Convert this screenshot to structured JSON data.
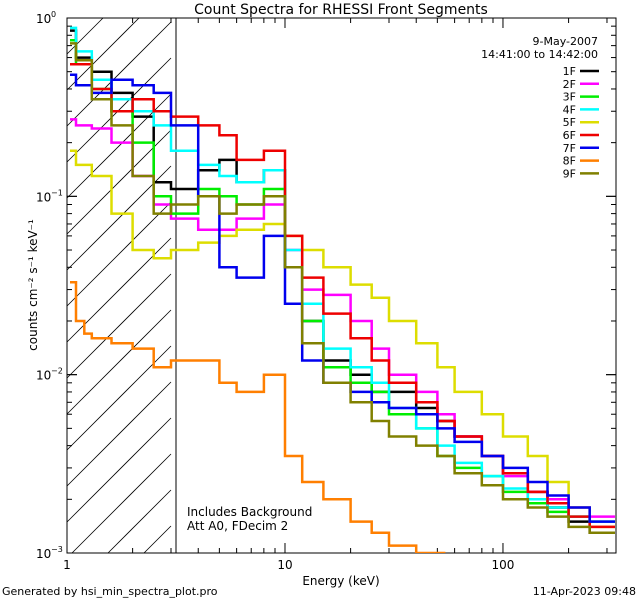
{
  "chart_data": {
    "type": "line",
    "title": "Count Spectra for RHESSI Front Segments",
    "xlabel": "Energy (keV)",
    "ylabel": "counts cm⁻² s⁻¹ keV⁻¹",
    "xscale": "log",
    "yscale": "log",
    "xlim": [
      1.0,
      330.0
    ],
    "ylim": [
      0.001,
      1.0
    ],
    "x_ticks": [
      {
        "value": 1,
        "label": "1"
      },
      {
        "value": 10,
        "label": "10"
      },
      {
        "value": 100,
        "label": "100"
      }
    ],
    "y_ticks": [
      {
        "value": 0.001,
        "base": "10",
        "exp": "−3"
      },
      {
        "value": 0.01,
        "base": "10",
        "exp": "−2"
      },
      {
        "value": 0.1,
        "base": "10",
        "exp": "−1"
      },
      {
        "value": 1.0,
        "base": "10",
        "exp": "0"
      }
    ],
    "legend_header": [
      "9-May-2007",
      "14:41:00 to 14:42:00"
    ],
    "legend_position": "top-right",
    "attenuated_region_max_keV": 3.0,
    "annotations": [
      "Includes Background",
      "Att A0, FDecim 2"
    ],
    "series": [
      {
        "name": "1F",
        "color": "#000000",
        "points": [
          [
            1.1,
            0.85
          ],
          [
            1.3,
            0.6
          ],
          [
            1.6,
            0.5
          ],
          [
            2.0,
            0.38
          ],
          [
            2.5,
            0.28
          ],
          [
            3.0,
            0.12
          ],
          [
            4.0,
            0.11
          ],
          [
            5.0,
            0.14
          ],
          [
            6.0,
            0.16
          ],
          [
            8.0,
            0.12
          ],
          [
            10.0,
            0.14
          ],
          [
            12.0,
            0.04
          ],
          [
            15.0,
            0.02
          ],
          [
            20.0,
            0.012
          ],
          [
            25.0,
            0.01
          ],
          [
            30.0,
            0.008
          ],
          [
            40.0,
            0.008
          ],
          [
            50.0,
            0.0065
          ],
          [
            60.0,
            0.0055
          ],
          [
            80.0,
            0.0045
          ],
          [
            100.0,
            0.0035
          ],
          [
            130.0,
            0.0028
          ],
          [
            160.0,
            0.0022
          ],
          [
            200.0,
            0.0018
          ],
          [
            250.0,
            0.0015
          ],
          [
            300.0,
            0.0013
          ]
        ]
      },
      {
        "name": "2F",
        "color": "#ff00ff",
        "points": [
          [
            1.1,
            0.27
          ],
          [
            1.3,
            0.25
          ],
          [
            1.6,
            0.24
          ],
          [
            2.0,
            0.2
          ],
          [
            2.5,
            0.13
          ],
          [
            3.0,
            0.09
          ],
          [
            4.0,
            0.075
          ],
          [
            5.0,
            0.065
          ],
          [
            6.0,
            0.065
          ],
          [
            8.0,
            0.075
          ],
          [
            10.0,
            0.09
          ],
          [
            12.0,
            0.05
          ],
          [
            15.0,
            0.03
          ],
          [
            20.0,
            0.028
          ],
          [
            25.0,
            0.02
          ],
          [
            30.0,
            0.014
          ],
          [
            40.0,
            0.01
          ],
          [
            50.0,
            0.008
          ],
          [
            60.0,
            0.006
          ],
          [
            80.0,
            0.0045
          ],
          [
            100.0,
            0.0035
          ],
          [
            130.0,
            0.0027
          ],
          [
            160.0,
            0.0022
          ],
          [
            200.0,
            0.002
          ],
          [
            250.0,
            0.0018
          ],
          [
            300.0,
            0.0016
          ]
        ]
      },
      {
        "name": "3F",
        "color": "#00ee00",
        "points": [
          [
            1.1,
            0.75
          ],
          [
            1.3,
            0.55
          ],
          [
            1.6,
            0.4
          ],
          [
            2.0,
            0.3
          ],
          [
            2.5,
            0.2
          ],
          [
            3.0,
            0.1
          ],
          [
            4.0,
            0.08
          ],
          [
            5.0,
            0.11
          ],
          [
            6.0,
            0.1
          ],
          [
            8.0,
            0.09
          ],
          [
            10.0,
            0.11
          ],
          [
            12.0,
            0.04
          ],
          [
            15.0,
            0.02
          ],
          [
            20.0,
            0.011
          ],
          [
            25.0,
            0.009
          ],
          [
            30.0,
            0.008
          ],
          [
            40.0,
            0.006
          ],
          [
            50.0,
            0.005
          ],
          [
            60.0,
            0.0035
          ],
          [
            80.0,
            0.003
          ],
          [
            100.0,
            0.0027
          ],
          [
            130.0,
            0.0022
          ],
          [
            160.0,
            0.0019
          ],
          [
            200.0,
            0.0017
          ],
          [
            250.0,
            0.0016
          ],
          [
            300.0,
            0.0015
          ]
        ]
      },
      {
        "name": "4F",
        "color": "#00ffff",
        "points": [
          [
            1.1,
            0.88
          ],
          [
            1.3,
            0.65
          ],
          [
            1.6,
            0.45
          ],
          [
            2.0,
            0.35
          ],
          [
            2.5,
            0.3
          ],
          [
            3.0,
            0.25
          ],
          [
            4.0,
            0.18
          ],
          [
            5.0,
            0.15
          ],
          [
            6.0,
            0.13
          ],
          [
            8.0,
            0.12
          ],
          [
            10.0,
            0.14
          ],
          [
            12.0,
            0.05
          ],
          [
            15.0,
            0.025
          ],
          [
            20.0,
            0.014
          ],
          [
            25.0,
            0.011
          ],
          [
            30.0,
            0.009
          ],
          [
            40.0,
            0.0065
          ],
          [
            50.0,
            0.005
          ],
          [
            60.0,
            0.004
          ],
          [
            80.0,
            0.0032
          ],
          [
            100.0,
            0.0027
          ],
          [
            130.0,
            0.0023
          ],
          [
            160.0,
            0.002
          ],
          [
            200.0,
            0.0018
          ],
          [
            250.0,
            0.0016
          ],
          [
            300.0,
            0.0015
          ]
        ]
      },
      {
        "name": "5F",
        "color": "#dddd00",
        "points": [
          [
            1.1,
            0.18
          ],
          [
            1.3,
            0.15
          ],
          [
            1.6,
            0.13
          ],
          [
            2.0,
            0.08
          ],
          [
            2.5,
            0.05
          ],
          [
            3.0,
            0.045
          ],
          [
            4.0,
            0.05
          ],
          [
            5.0,
            0.055
          ],
          [
            6.0,
            0.06
          ],
          [
            8.0,
            0.065
          ],
          [
            10.0,
            0.07
          ],
          [
            12.0,
            0.06
          ],
          [
            15.0,
            0.05
          ],
          [
            20.0,
            0.04
          ],
          [
            25.0,
            0.032
          ],
          [
            30.0,
            0.027
          ],
          [
            40.0,
            0.02
          ],
          [
            50.0,
            0.015
          ],
          [
            60.0,
            0.011
          ],
          [
            80.0,
            0.008
          ],
          [
            100.0,
            0.006
          ],
          [
            130.0,
            0.0045
          ],
          [
            160.0,
            0.0035
          ],
          [
            200.0,
            0.0025
          ],
          [
            250.0,
            0.0018
          ],
          [
            300.0,
            0.0014
          ]
        ]
      },
      {
        "name": "6F",
        "color": "#ee0000",
        "points": [
          [
            1.1,
            0.55
          ],
          [
            1.3,
            0.55
          ],
          [
            1.6,
            0.4
          ],
          [
            2.0,
            0.3
          ],
          [
            2.5,
            0.35
          ],
          [
            3.0,
            0.3
          ],
          [
            4.0,
            0.28
          ],
          [
            5.0,
            0.25
          ],
          [
            6.0,
            0.22
          ],
          [
            8.0,
            0.16
          ],
          [
            10.0,
            0.18
          ],
          [
            12.0,
            0.06
          ],
          [
            15.0,
            0.035
          ],
          [
            20.0,
            0.022
          ],
          [
            25.0,
            0.016
          ],
          [
            30.0,
            0.012
          ],
          [
            40.0,
            0.009
          ],
          [
            50.0,
            0.007
          ],
          [
            60.0,
            0.0055
          ],
          [
            80.0,
            0.0045
          ],
          [
            100.0,
            0.0035
          ],
          [
            130.0,
            0.0028
          ],
          [
            160.0,
            0.0022
          ],
          [
            200.0,
            0.0019
          ],
          [
            250.0,
            0.0016
          ],
          [
            300.0,
            0.0014
          ]
        ]
      },
      {
        "name": "7F",
        "color": "#0000ee",
        "points": [
          [
            1.1,
            0.48
          ],
          [
            1.3,
            0.42
          ],
          [
            1.6,
            0.38
          ],
          [
            2.0,
            0.45
          ],
          [
            2.5,
            0.42
          ],
          [
            3.0,
            0.38
          ],
          [
            4.0,
            0.25
          ],
          [
            5.0,
            0.1
          ],
          [
            6.0,
            0.04
          ],
          [
            8.0,
            0.035
          ],
          [
            10.0,
            0.06
          ],
          [
            12.0,
            0.025
          ],
          [
            15.0,
            0.012
          ],
          [
            20.0,
            0.009
          ],
          [
            25.0,
            0.008
          ],
          [
            30.0,
            0.007
          ],
          [
            40.0,
            0.0065
          ],
          [
            50.0,
            0.006
          ],
          [
            60.0,
            0.005
          ],
          [
            80.0,
            0.0042
          ],
          [
            100.0,
            0.0035
          ],
          [
            130.0,
            0.003
          ],
          [
            160.0,
            0.0025
          ],
          [
            200.0,
            0.0021
          ],
          [
            250.0,
            0.0018
          ],
          [
            300.0,
            0.0015
          ]
        ]
      },
      {
        "name": "8F",
        "color": "#ff7f00",
        "points": [
          [
            1.1,
            0.033
          ],
          [
            1.2,
            0.02
          ],
          [
            1.3,
            0.017
          ],
          [
            1.6,
            0.016
          ],
          [
            2.0,
            0.015
          ],
          [
            2.5,
            0.014
          ],
          [
            3.0,
            0.011
          ],
          [
            4.0,
            0.012
          ],
          [
            5.0,
            0.012
          ],
          [
            6.0,
            0.009
          ],
          [
            8.0,
            0.008
          ],
          [
            10.0,
            0.01
          ],
          [
            12.0,
            0.0035
          ],
          [
            15.0,
            0.0025
          ],
          [
            20.0,
            0.002
          ],
          [
            25.0,
            0.0015
          ],
          [
            30.0,
            0.0013
          ],
          [
            40.0,
            0.0011
          ],
          [
            50.0,
            0.001
          ]
        ]
      },
      {
        "name": "9F",
        "color": "#808000",
        "points": [
          [
            1.1,
            0.72
          ],
          [
            1.3,
            0.58
          ],
          [
            1.6,
            0.35
          ],
          [
            2.0,
            0.25
          ],
          [
            2.5,
            0.13
          ],
          [
            3.0,
            0.08
          ],
          [
            4.0,
            0.09
          ],
          [
            5.0,
            0.1
          ],
          [
            6.0,
            0.08
          ],
          [
            8.0,
            0.09
          ],
          [
            10.0,
            0.1
          ],
          [
            12.0,
            0.04
          ],
          [
            15.0,
            0.015
          ],
          [
            20.0,
            0.009
          ],
          [
            25.0,
            0.007
          ],
          [
            30.0,
            0.0055
          ],
          [
            40.0,
            0.0045
          ],
          [
            50.0,
            0.004
          ],
          [
            60.0,
            0.0035
          ],
          [
            80.0,
            0.0028
          ],
          [
            100.0,
            0.0024
          ],
          [
            130.0,
            0.002
          ],
          [
            160.0,
            0.0018
          ],
          [
            200.0,
            0.0016
          ],
          [
            250.0,
            0.0014
          ],
          [
            300.0,
            0.0013
          ]
        ]
      }
    ]
  },
  "footer": {
    "left": "Generated by hsi_min_spectra_plot.pro",
    "right": "11-Apr-2023 09:48"
  }
}
